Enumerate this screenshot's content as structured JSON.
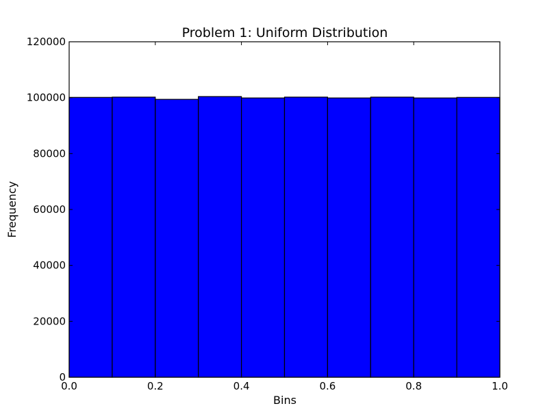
{
  "chart_data": {
    "type": "bar",
    "title": "Problem 1: Uniform Distribution",
    "xlabel": "Bins",
    "ylabel": "Frequency",
    "xlim": [
      0.0,
      1.0
    ],
    "ylim": [
      0,
      120000
    ],
    "bin_edges": [
      0.0,
      0.1,
      0.2,
      0.3,
      0.4,
      0.5,
      0.6,
      0.7,
      0.8,
      0.9,
      1.0
    ],
    "values": [
      100100,
      100200,
      99400,
      100400,
      99900,
      100200,
      99900,
      100200,
      99900,
      100100
    ],
    "x_ticks": [
      "0.0",
      "0.2",
      "0.4",
      "0.6",
      "0.8",
      "1.0"
    ],
    "y_ticks": [
      "0",
      "20000",
      "40000",
      "60000",
      "80000",
      "100000",
      "120000"
    ],
    "bar_color": "#0000ff",
    "edge_color": "#000000",
    "grid": false,
    "legend": "none"
  }
}
